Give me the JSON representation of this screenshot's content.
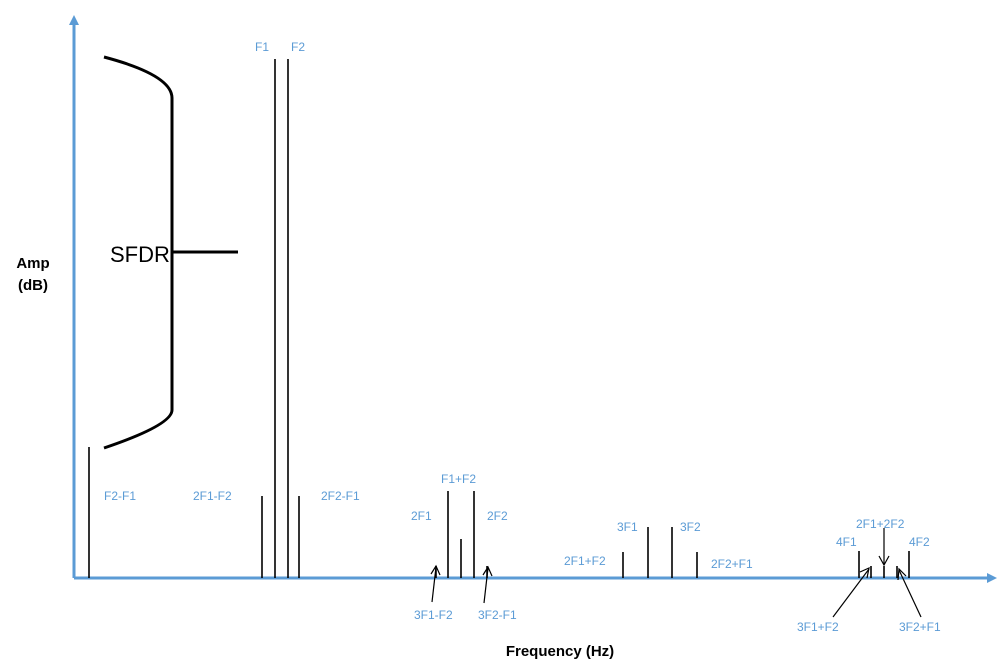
{
  "axes": {
    "y_label_line1": "Amp",
    "y_label_line2": "(dB)",
    "x_label": "Frequency (Hz)"
  },
  "sfdr_label": "SFDR",
  "spurs": {
    "f2_minus_f1": "F2-F1",
    "f1": "F1",
    "f2": "F2",
    "two_f1_minus_f2": "2F1-F2",
    "two_f2_minus_f1": "2F2-F1",
    "f1_plus_f2": "F1+F2",
    "two_f1": "2F1",
    "two_f2": "2F2",
    "three_f1_minus_f2": "3F1-F2",
    "three_f2_minus_f1": "3F2-F1",
    "three_f1": "3F1",
    "three_f2": "3F2",
    "two_f1_plus_f2": "2F1+F2",
    "two_f2_plus_f1": "2F2+F1",
    "four_f1": "4F1",
    "four_f2": "4F2",
    "two_f1_plus_two_f2": "2F1+2F2",
    "three_f1_plus_f2": "3F1+F2",
    "three_f2_plus_f1": "3F2+F1"
  },
  "colors": {
    "axis": "#5b9bd5",
    "label": "#5b9bd5",
    "line": "#000000"
  }
}
